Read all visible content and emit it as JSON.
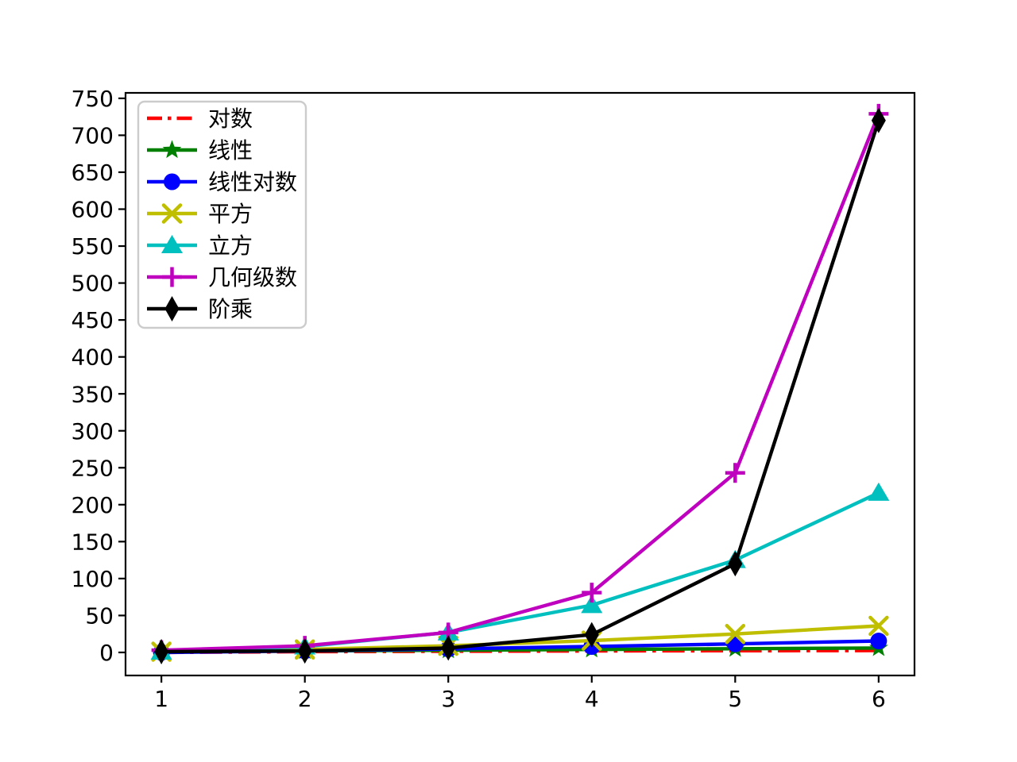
{
  "chart_data": {
    "type": "line",
    "x": [
      1,
      2,
      3,
      4,
      5,
      6
    ],
    "series": [
      {
        "name": "对数",
        "color": "#ff0000",
        "marker": "none",
        "linestyle": "dashdot",
        "values": [
          0,
          1,
          1.585,
          2,
          2.322,
          2.585
        ]
      },
      {
        "name": "线性",
        "color": "#008000",
        "marker": "star",
        "linestyle": "solid",
        "values": [
          1,
          2,
          3,
          4,
          5,
          6
        ]
      },
      {
        "name": "线性对数",
        "color": "#0000ff",
        "marker": "circle",
        "linestyle": "solid",
        "values": [
          0,
          2,
          4.755,
          8,
          11.61,
          15.51
        ]
      },
      {
        "name": "平方",
        "color": "#bfbf00",
        "marker": "x",
        "linestyle": "solid",
        "values": [
          1,
          4,
          9,
          16,
          25,
          36
        ]
      },
      {
        "name": "立方",
        "color": "#00bfbf",
        "marker": "triangle-up",
        "linestyle": "solid",
        "values": [
          1,
          8,
          27,
          64,
          125,
          216
        ]
      },
      {
        "name": "几何级数",
        "color": "#bf00bf",
        "marker": "plus",
        "linestyle": "solid",
        "values": [
          3,
          9,
          27,
          81,
          243,
          729
        ]
      },
      {
        "name": "阶乘",
        "color": "#000000",
        "marker": "thin-diamond",
        "linestyle": "solid",
        "values": [
          1,
          2,
          6,
          24,
          120,
          720
        ]
      }
    ],
    "xticks": [
      1,
      2,
      3,
      4,
      5,
      6
    ],
    "yticks": [
      0,
      50,
      100,
      150,
      200,
      250,
      300,
      350,
      400,
      450,
      500,
      550,
      600,
      650,
      700,
      750
    ],
    "xlim": [
      0.75,
      6.25
    ],
    "ylim": [
      -31.2,
      757.4
    ],
    "title": "",
    "xlabel": "",
    "ylabel": "",
    "grid": false,
    "legend": {
      "position": "upper-left",
      "border_color": "#cccccc",
      "face_color": "#ffffff"
    },
    "background": "#ffffff",
    "axis_color": "#000000",
    "tick_label_color": "#000000"
  }
}
